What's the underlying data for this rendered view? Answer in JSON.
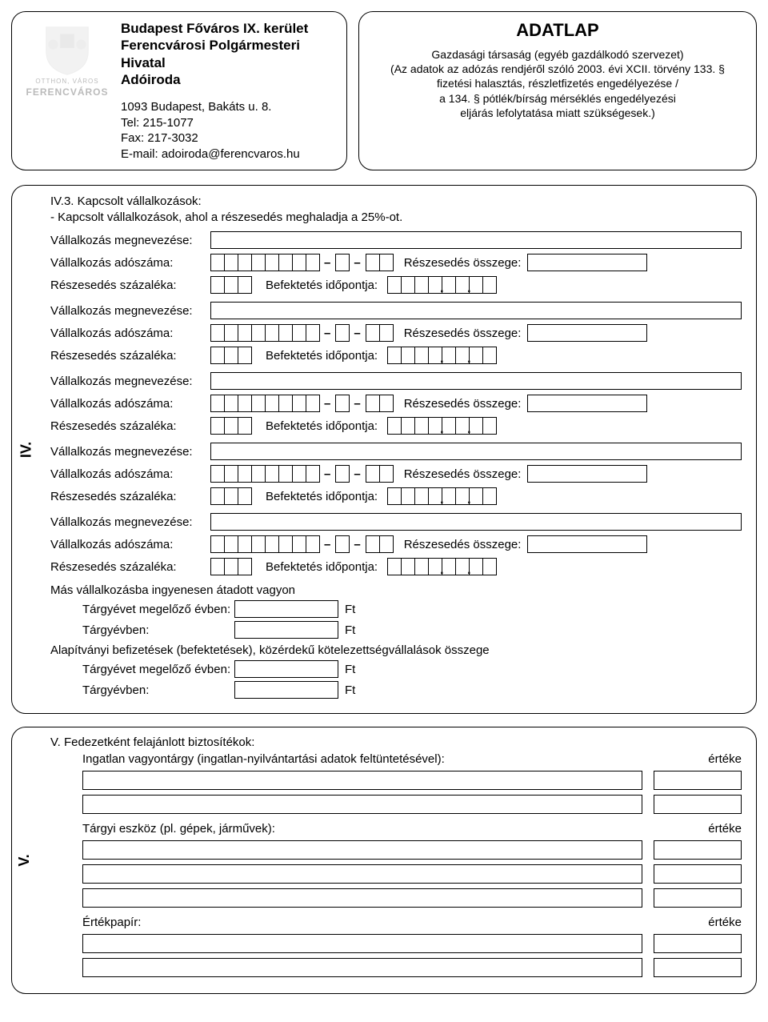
{
  "header": {
    "logo_motto": "OTTHON, VÁROS",
    "logo_name": "FERENCVÁROS",
    "org_line1": "Budapest Főváros IX. kerület",
    "org_line2": "Ferencvárosi Polgármesteri",
    "org_line3": "Hivatal",
    "org_line4": "Adóiroda",
    "addr": "1093 Budapest, Bakáts u. 8.",
    "tel": "Tel: 215-1077",
    "fax": "Fax: 217-3032",
    "email": "E-mail: adoiroda@ferencvaros.hu",
    "title": "ADATLAP",
    "sub1": "Gazdasági társaság (egyéb gazdálkodó szervezet)",
    "sub2": "(Az adatok az adózás rendjéről szóló 2003. évi XCII. törvény 133. §",
    "sub3": "fizetési halasztás, részletfizetés engedélyezése /",
    "sub4": "a 134. § pótlék/bírság mérséklés engedélyezési",
    "sub5": "eljárás lefolytatása miatt szükségesek.)"
  },
  "section4": {
    "side": "IV.",
    "title": "IV.3. Kapcsolt vállalkozások:",
    "subtitle": "  - Kapcsolt vállalkozások, ahol a részesedés meghaladja a 25%-ot.",
    "labels": {
      "name": "Vállalkozás megnevezése:",
      "taxno": "Vállalkozás adószáma:",
      "share_amount": "Részesedés összege:",
      "share_pct": "Részesedés százaléka:",
      "invest_date": "Befektetés időpontja:"
    },
    "other_assets": "Más vállalkozásba ingyenesen átadott vagyon",
    "prev_year": "Tárgyévet megelőző évben:",
    "curr_year": "Tárgyévben:",
    "ft": "Ft",
    "foundation": "Alapítványi befizetések (befektetések), közérdekű kötelezettségvállalások összege"
  },
  "section5": {
    "side": "V.",
    "title": "V. Fedezetként felajánlott biztosítékok:",
    "realestate": "Ingatlan vagyontárgy (ingatlan-nyilvántartási adatok feltüntetésével):",
    "value": "értéke",
    "asset": "Tárgyi eszköz (pl. gépek, járművek):",
    "security": "Értékpapír:"
  }
}
